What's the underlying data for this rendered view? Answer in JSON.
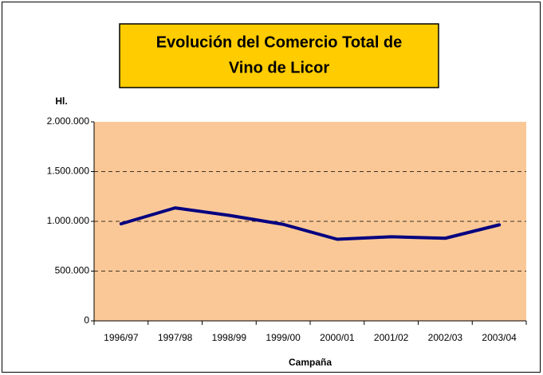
{
  "chart_data": {
    "type": "line",
    "title": [
      "Evolución del Comercio Total de",
      "Vino de Licor"
    ],
    "y_label": "Hl.",
    "x_label": "Campaña",
    "categories": [
      "1996/97",
      "1997/98",
      "1998/99",
      "1999/00",
      "2000/01",
      "2001/02",
      "2002/03",
      "2003/04"
    ],
    "series": [
      {
        "color": "#000080",
        "values": [
          975000,
          1135000,
          1060000,
          970000,
          820000,
          845000,
          830000,
          965000
        ]
      }
    ],
    "ylim": [
      0,
      2000000
    ],
    "yticks": [
      0,
      {
        "value": 500000,
        "label": "500.000"
      },
      {
        "value": 1000000,
        "label": "1.000.000"
      },
      {
        "value": 1500000,
        "label": "1.500.000"
      },
      {
        "value": 2000000,
        "label": "2.000.000"
      }
    ],
    "grid": true,
    "plot_background": "#FAC896",
    "title_background": "#FFCC00"
  }
}
